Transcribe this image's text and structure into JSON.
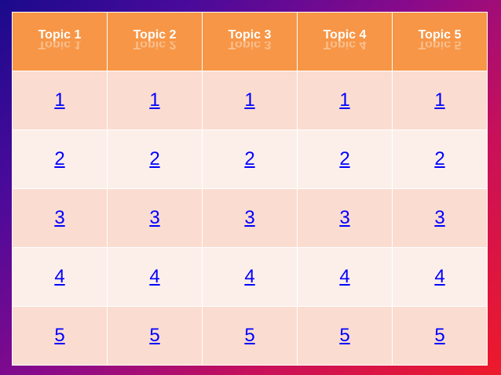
{
  "board": {
    "topics": [
      "Topic 1",
      "Topic 2",
      "Topic 3",
      "Topic 4",
      "Topic 5"
    ],
    "rows": [
      [
        "1",
        "1",
        "1",
        "1",
        "1"
      ],
      [
        "2",
        "2",
        "2",
        "2",
        "2"
      ],
      [
        "3",
        "3",
        "3",
        "3",
        "3"
      ],
      [
        "4",
        "4",
        "4",
        "4",
        "4"
      ],
      [
        "5",
        "5",
        "5",
        "5",
        "5"
      ]
    ]
  },
  "colors": {
    "header": "#f79646",
    "row_odd": "#fbdcd0",
    "row_even": "#fcefea",
    "link": "#0000ff"
  }
}
